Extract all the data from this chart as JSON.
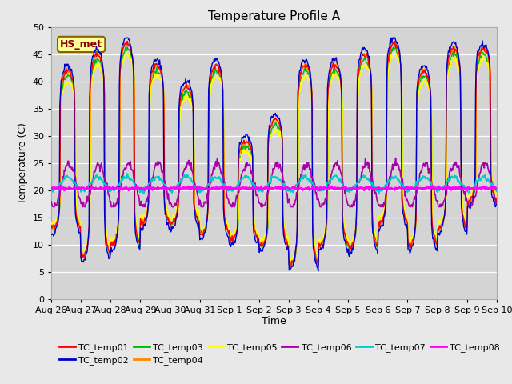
{
  "title": "Temperature Profile A",
  "xlabel": "Time",
  "ylabel": "Temperature (C)",
  "ylim": [
    0,
    50
  ],
  "yticks": [
    0,
    5,
    10,
    15,
    20,
    25,
    30,
    35,
    40,
    45,
    50
  ],
  "background_color": "#e8e8e8",
  "plot_bg_color": "#d4d4d4",
  "grid_color": "#ffffff",
  "annotation_text": "HS_met",
  "annotation_color": "#8b0000",
  "annotation_bg": "#ffff99",
  "annotation_border": "#8b6000",
  "series": [
    {
      "label": "TC_temp01",
      "color": "#ff0000"
    },
    {
      "label": "TC_temp02",
      "color": "#0000cc"
    },
    {
      "label": "TC_temp03",
      "color": "#00bb00"
    },
    {
      "label": "TC_temp04",
      "color": "#ff8800"
    },
    {
      "label": "TC_temp05",
      "color": "#ffff00"
    },
    {
      "label": "TC_temp06",
      "color": "#aa00aa"
    },
    {
      "label": "TC_temp07",
      "color": "#00cccc"
    },
    {
      "label": "TC_temp08",
      "color": "#ff00ff"
    }
  ],
  "date_labels": [
    "Aug 26",
    "Aug 27",
    "Aug 28",
    "Aug 29",
    "Aug 30",
    "Aug 31",
    "Sep 1",
    "Sep 2",
    "Sep 3",
    "Sep 4",
    "Sep 5",
    "Sep 6",
    "Sep 7",
    "Sep 8",
    "Sep 9",
    "Sep 10"
  ],
  "n_days": 15,
  "pts_per_day": 48
}
